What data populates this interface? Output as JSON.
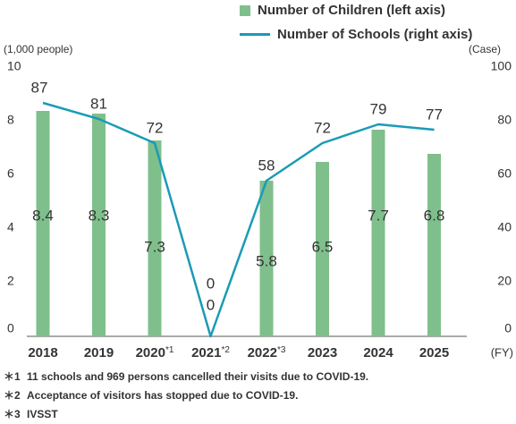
{
  "chart_data": {
    "type": "bar+line",
    "categories": [
      "2018",
      "2019",
      "2020",
      "2021",
      "2022",
      "2023",
      "2024",
      "2025"
    ],
    "category_superscripts": [
      "",
      "",
      "*1",
      "*2",
      "*3",
      "",
      "",
      ""
    ],
    "series": [
      {
        "name": "Number of Children (left axis)",
        "type": "bar",
        "axis": "left",
        "values": [
          8.4,
          8.3,
          7.3,
          0,
          5.8,
          6.5,
          7.7,
          6.8
        ],
        "labels": [
          "8.4",
          "8.3",
          "7.3",
          "0",
          "5.8",
          "6.5",
          "7.7",
          "6.8"
        ],
        "color": "#7fbf8c"
      },
      {
        "name": "Number of Schools (right axis)",
        "type": "line",
        "axis": "right",
        "values": [
          87,
          81,
          72,
          0,
          58,
          72,
          79,
          77
        ],
        "labels": [
          "87",
          "81",
          "72",
          "0",
          "58",
          "72",
          "79",
          "77"
        ],
        "color": "#1a9bb5"
      }
    ],
    "y_left": {
      "label": "(1,000 people)",
      "ticks": [
        "0",
        "2",
        "4",
        "6",
        "8",
        "10"
      ],
      "lim": [
        0,
        10
      ]
    },
    "y_right": {
      "label": "(Case)",
      "ticks": [
        "0",
        "20",
        "40",
        "60",
        "80",
        "100"
      ],
      "lim": [
        0,
        100
      ]
    },
    "x_unit": "(FY)",
    "grid": false,
    "legend_position": "top-right"
  },
  "notes": [
    {
      "mark": "＊1",
      "text": "11 schools and 969 persons cancelled their visits due to COVID-19."
    },
    {
      "mark": "＊2",
      "text": "Acceptance of visitors has stopped due to COVID-19."
    },
    {
      "mark": "＊3",
      "text": "IVSST"
    }
  ]
}
